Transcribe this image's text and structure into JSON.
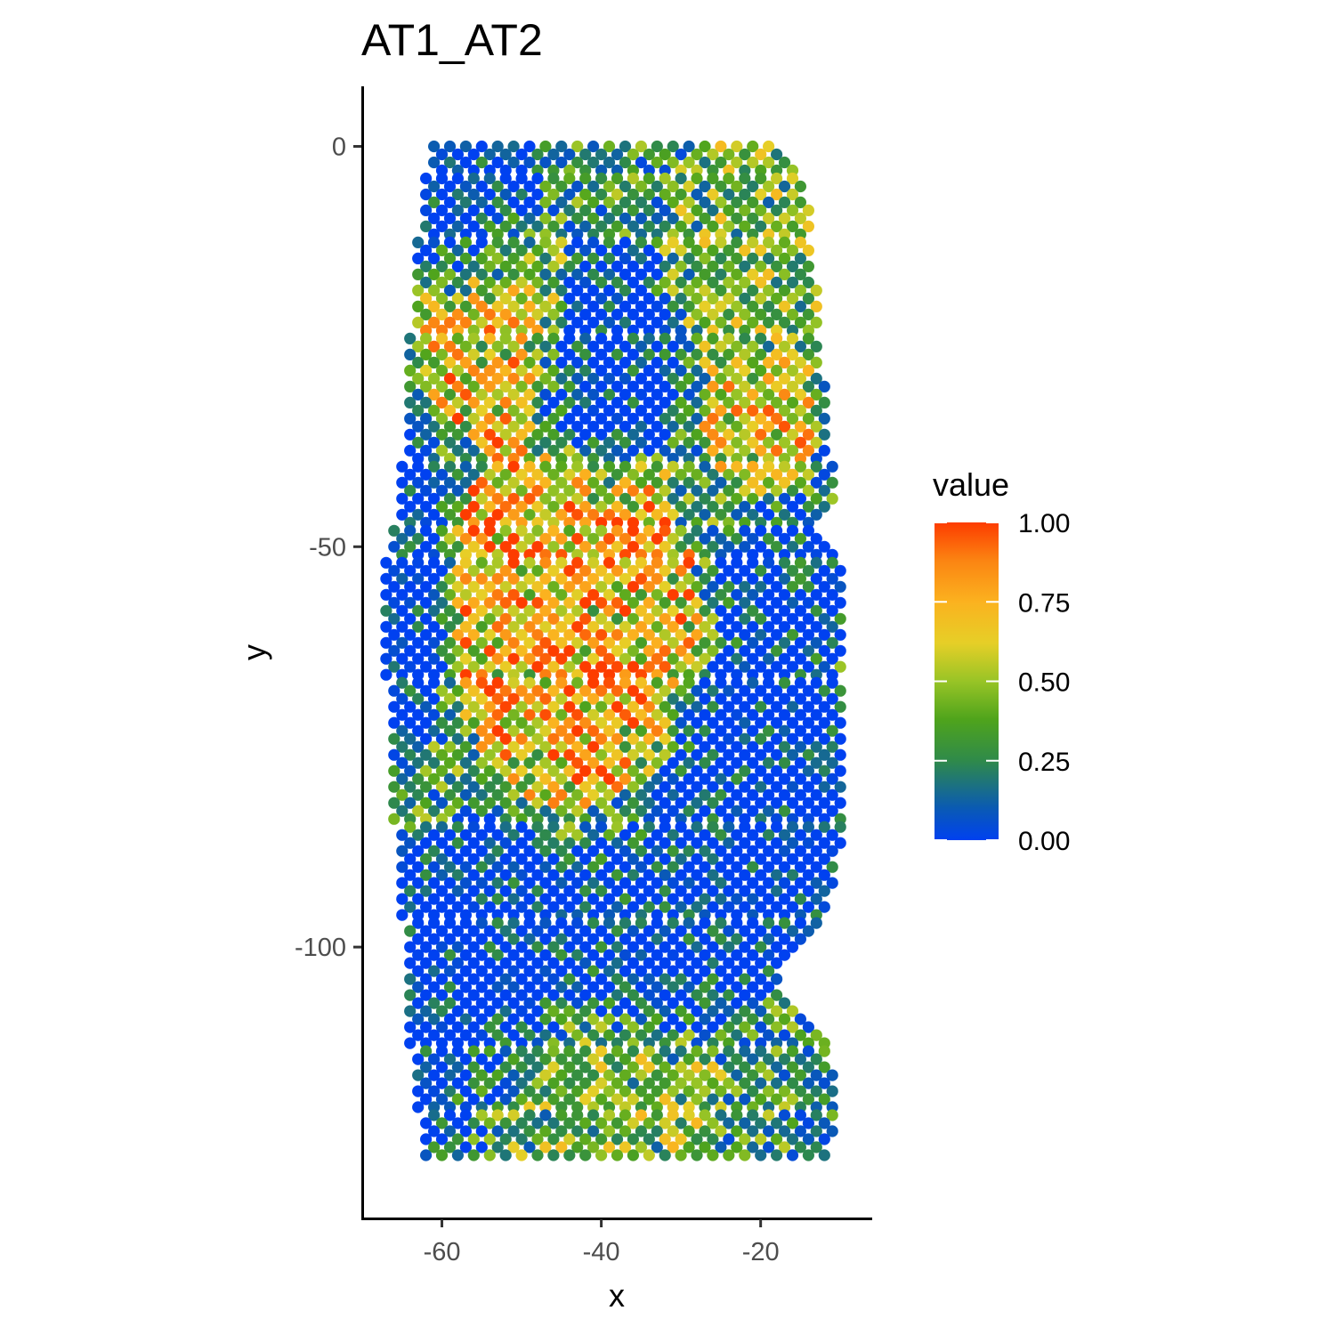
{
  "chart_data": {
    "type": "scatter",
    "title": "AT1_AT2",
    "xlabel": "x",
    "ylabel": "y",
    "xlim": [
      -70,
      -6
    ],
    "ylim": [
      -134,
      7.5
    ],
    "x_ticks": [
      {
        "value": -60,
        "label": "-60"
      },
      {
        "value": -40,
        "label": "-40"
      },
      {
        "value": -20,
        "label": "-20"
      }
    ],
    "y_ticks": [
      {
        "value": 0,
        "label": "0"
      },
      {
        "value": -50,
        "label": "-50"
      },
      {
        "value": -100,
        "label": "-100"
      }
    ],
    "grid": false,
    "legend": {
      "title": "value",
      "placement": "right",
      "range": [
        0,
        1
      ],
      "ticks": [
        {
          "value": 1.0,
          "label": "1.00"
        },
        {
          "value": 0.75,
          "label": "0.75"
        },
        {
          "value": 0.5,
          "label": "0.50"
        },
        {
          "value": 0.25,
          "label": "0.25"
        },
        {
          "value": 0.0,
          "label": "0.00"
        }
      ]
    },
    "color_scale": [
      {
        "stop": 0.0,
        "color": "#0041f0"
      },
      {
        "stop": 0.1,
        "color": "#0a5ab4"
      },
      {
        "stop": 0.25,
        "color": "#2f8a4a"
      },
      {
        "stop": 0.38,
        "color": "#4fa41c"
      },
      {
        "stop": 0.5,
        "color": "#98c426"
      },
      {
        "stop": 0.62,
        "color": "#e6cf27"
      },
      {
        "stop": 0.75,
        "color": "#fbb21f"
      },
      {
        "stop": 0.88,
        "color": "#fb8412"
      },
      {
        "stop": 1.0,
        "color": "#fd3c00"
      }
    ],
    "grid_spacing": {
      "dx": 1.0,
      "dy": 1.0
    },
    "x_extent": [
      -66,
      -10
    ],
    "y_extent": [
      -126,
      0
    ],
    "row_boundaries": [
      [
        0,
        -61,
        -18
      ],
      [
        -2,
        -61,
        -16
      ],
      [
        -4,
        -62,
        -15
      ],
      [
        -8,
        -62,
        -14
      ],
      [
        -12,
        -63,
        -14
      ],
      [
        -18,
        -63,
        -13
      ],
      [
        -24,
        -64,
        -13
      ],
      [
        -30,
        -64,
        -12
      ],
      [
        -36,
        -64,
        -12
      ],
      [
        -40,
        -65,
        -11
      ],
      [
        -44,
        -65,
        -11
      ],
      [
        -48,
        -66,
        -13
      ],
      [
        -52,
        -67,
        -10
      ],
      [
        -56,
        -67,
        -10
      ],
      [
        -60,
        -67,
        -10
      ],
      [
        -66,
        -67,
        -10
      ],
      [
        -70,
        -66,
        -10
      ],
      [
        -76,
        -66,
        -10
      ],
      [
        -80,
        -66,
        -10
      ],
      [
        -84,
        -66,
        -10
      ],
      [
        -88,
        -65,
        -10
      ],
      [
        -92,
        -65,
        -11
      ],
      [
        -96,
        -65,
        -12
      ],
      [
        -100,
        -64,
        -16
      ],
      [
        -104,
        -64,
        -18
      ],
      [
        -108,
        -64,
        -16
      ],
      [
        -112,
        -64,
        -12
      ],
      [
        -116,
        -63,
        -11
      ],
      [
        -120,
        -63,
        -11
      ],
      [
        -124,
        -62,
        -11
      ],
      [
        -126,
        -62,
        -12
      ]
    ],
    "value_regions": [
      {
        "name": "low-top-left",
        "cx": -56,
        "cy": -8,
        "rx": 5,
        "ry": 9,
        "level": 0.02
      },
      {
        "name": "high-upper-left",
        "cx": -53,
        "cy": -22,
        "rx": 6,
        "ry": 8,
        "level": 0.75
      },
      {
        "name": "low-upper-center",
        "cx": -40,
        "cy": -27,
        "rx": 6,
        "ry": 9,
        "level": 0.02
      },
      {
        "name": "mid-upper-right",
        "cx": -22,
        "cy": -14,
        "rx": 6,
        "ry": 10,
        "level": 0.45
      },
      {
        "name": "high-right",
        "cx": -20,
        "cy": -33,
        "rx": 4,
        "ry": 6,
        "level": 0.7
      },
      {
        "name": "high-center",
        "cx": -44,
        "cy": -58,
        "rx": 9,
        "ry": 14,
        "level": 0.8
      },
      {
        "name": "low-left-edge",
        "cx": -64,
        "cy": -55,
        "rx": 3,
        "ry": 12,
        "level": 0.02
      },
      {
        "name": "low-right-mid",
        "cx": -17,
        "cy": -56,
        "rx": 5,
        "ry": 7,
        "level": 0.08
      },
      {
        "name": "low-right-lower",
        "cx": -19,
        "cy": -85,
        "rx": 8,
        "ry": 12,
        "level": 0.02
      },
      {
        "name": "low-bottom-left",
        "cx": -56,
        "cy": -105,
        "rx": 8,
        "ry": 12,
        "level": 0.02
      },
      {
        "name": "low-bottom-center",
        "cx": -37,
        "cy": -100,
        "rx": 8,
        "ry": 8,
        "level": 0.05
      },
      {
        "name": "mid-bottom",
        "cx": -42,
        "cy": -118,
        "rx": 10,
        "ry": 7,
        "level": 0.5
      }
    ],
    "points_note": ""
  }
}
